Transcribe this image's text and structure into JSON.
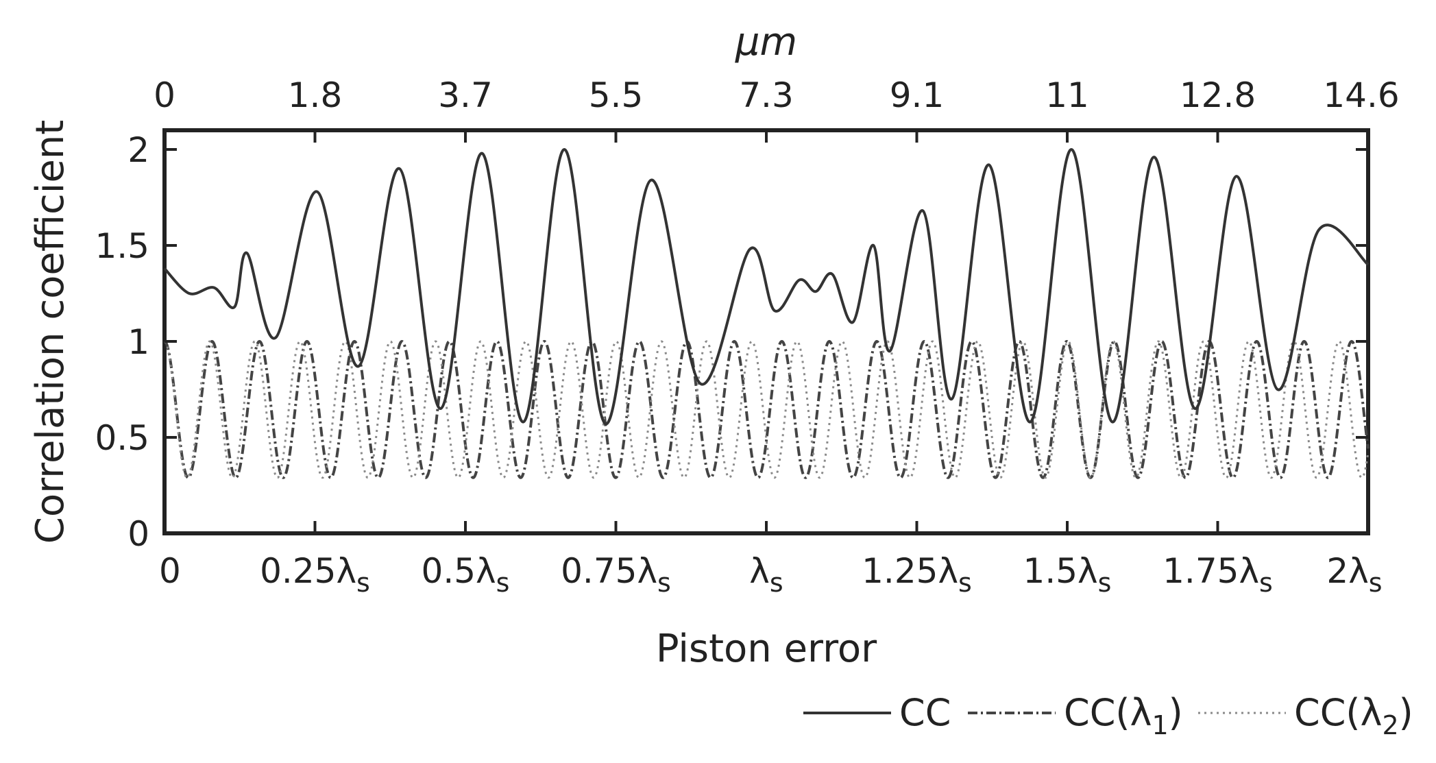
{
  "chart_data": {
    "type": "line",
    "title": "",
    "xlabel": "Piston error",
    "ylabel": "Correlation coefficient",
    "top_axis_label": "μm",
    "xlim": [
      0,
      14.6
    ],
    "ylim": [
      0,
      2.1
    ],
    "x_unit": "μm",
    "grid": false,
    "legend_position": "bottom-right",
    "bottom_ticks": [
      {
        "value": 0,
        "label": "0"
      },
      {
        "value": 1.825,
        "label": "0.25λ",
        "sub": "s"
      },
      {
        "value": 3.65,
        "label": "0.5λ",
        "sub": "s"
      },
      {
        "value": 5.475,
        "label": "0.75λ",
        "sub": "s"
      },
      {
        "value": 7.3,
        "label": "λ",
        "sub": "s"
      },
      {
        "value": 9.125,
        "label": "1.25λ",
        "sub": "s"
      },
      {
        "value": 10.95,
        "label": "1.5λ",
        "sub": "s"
      },
      {
        "value": 12.775,
        "label": "1.75λ",
        "sub": "s"
      },
      {
        "value": 14.6,
        "label": "2λ",
        "sub": "s"
      }
    ],
    "top_ticks": [
      {
        "value": 0,
        "label": "0"
      },
      {
        "value": 1.825,
        "label": "1.8"
      },
      {
        "value": 3.65,
        "label": "3.7"
      },
      {
        "value": 5.475,
        "label": "5.5"
      },
      {
        "value": 7.3,
        "label": "7.3"
      },
      {
        "value": 9.125,
        "label": "9.1"
      },
      {
        "value": 10.95,
        "label": "11"
      },
      {
        "value": 12.775,
        "label": "12.8"
      },
      {
        "value": 14.6,
        "label": "14.6"
      }
    ],
    "y_ticks": [
      {
        "value": 0,
        "label": "0"
      },
      {
        "value": 0.5,
        "label": "0.5"
      },
      {
        "value": 1,
        "label": "1"
      },
      {
        "value": 1.5,
        "label": "1.5"
      },
      {
        "value": 2,
        "label": "2"
      }
    ],
    "series": [
      {
        "name": "CC",
        "style": "solid",
        "color": "#333333",
        "x": [
          0,
          0.3,
          0.6,
          0.85,
          1.0,
          1.35,
          1.85,
          2.35,
          2.85,
          3.35,
          3.85,
          4.35,
          4.85,
          5.35,
          5.9,
          6.5,
          7.1,
          7.4,
          7.7,
          7.9,
          8.1,
          8.35,
          8.6,
          8.8,
          9.2,
          9.55,
          10.0,
          10.5,
          11.0,
          11.5,
          12.0,
          12.5,
          13.0,
          13.5,
          14.0,
          14.6
        ],
        "y": [
          1.38,
          1.25,
          1.28,
          1.18,
          1.46,
          1.02,
          1.78,
          0.87,
          1.9,
          0.65,
          1.98,
          0.58,
          2.0,
          0.57,
          1.84,
          0.78,
          1.48,
          1.16,
          1.32,
          1.26,
          1.35,
          1.1,
          1.5,
          0.95,
          1.68,
          0.7,
          1.92,
          0.58,
          2.0,
          0.58,
          1.96,
          0.65,
          1.86,
          0.75,
          1.58,
          1.4
        ]
      },
      {
        "name": "CC(λ1)",
        "style": "dash-dot",
        "color": "#444444",
        "period": 0.576,
        "mean": 0.645,
        "amplitude": 0.355,
        "phase": 0,
        "x_range": [
          0,
          14.6
        ]
      },
      {
        "name": "CC(λ2)",
        "style": "dotted",
        "color": "#8a8a8a",
        "period": 0.548,
        "mean": 0.645,
        "amplitude": 0.355,
        "phase": 0,
        "x_range": [
          0,
          14.6
        ]
      }
    ]
  },
  "legend": {
    "items": [
      {
        "label": "CC",
        "sub": ""
      },
      {
        "label": "CC(λ",
        "sub": "1",
        "suffix": ")"
      },
      {
        "label": "CC(λ",
        "sub": "2",
        "suffix": ")"
      }
    ]
  }
}
